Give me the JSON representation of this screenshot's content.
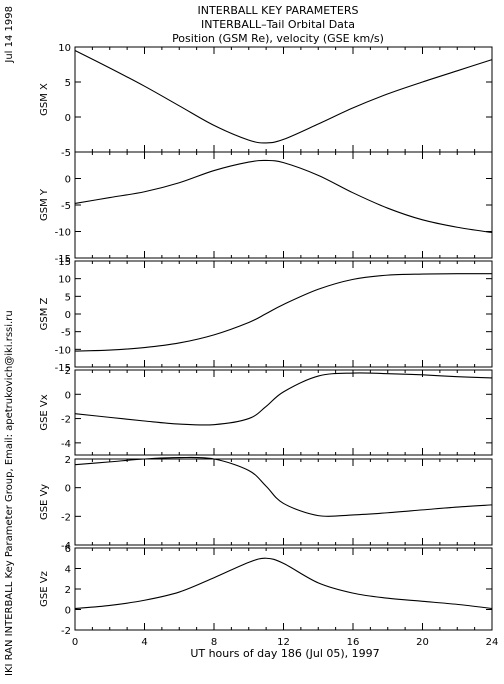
{
  "header": {
    "title_line1": "INTERBALL KEY PARAMETERS",
    "title_line2": "INTERBALL–Tail Orbital Data",
    "title_line3": "Position (GSM Re), velocity (GSE km/s)"
  },
  "side": {
    "date": "Jul 14 1998",
    "credit": "IKI RAN INTERBALL Key Parameter Group, Email: apetrukovich@iki.rssi.ru"
  },
  "chart_data": {
    "type": "line",
    "xlabel": "UT hours of day 186 (Jul 05), 1997",
    "xlim": [
      0,
      24
    ],
    "xticks": [
      0,
      4,
      8,
      12,
      16,
      20,
      24
    ],
    "x": [
      0,
      2,
      4,
      6,
      8,
      10,
      11,
      12,
      14,
      16,
      18,
      20,
      22,
      24
    ],
    "panels": [
      {
        "ylabel": "GSM X",
        "ylim": [
          -5,
          10
        ],
        "yticks": [
          -5,
          0,
          5,
          10
        ],
        "values": [
          9.5,
          7.0,
          4.4,
          1.6,
          -1.2,
          -3.3,
          -3.7,
          -3.2,
          -1.0,
          1.3,
          3.3,
          5.0,
          6.6,
          8.2
        ]
      },
      {
        "ylabel": "GSM Y",
        "ylim": [
          -15,
          5
        ],
        "yticks": [
          -15,
          -10,
          -5,
          0
        ],
        "values": [
          -4.7,
          -3.6,
          -2.5,
          -0.8,
          1.5,
          3.1,
          3.4,
          3.0,
          0.6,
          -2.7,
          -5.6,
          -7.8,
          -9.2,
          -10.2
        ]
      },
      {
        "ylabel": "GSM Z",
        "ylim": [
          -15,
          15
        ],
        "yticks": [
          -15,
          -10,
          -5,
          0,
          5,
          10,
          15
        ],
        "values": [
          -10.5,
          -10.2,
          -9.5,
          -8.2,
          -5.9,
          -2.4,
          0.1,
          2.7,
          7.0,
          9.8,
          11.0,
          11.3,
          11.4,
          11.4
        ]
      },
      {
        "ylabel": "GSE Vx",
        "ylim": [
          -5,
          2
        ],
        "yticks": [
          -4,
          -2,
          0,
          2
        ],
        "values": [
          -1.6,
          -1.9,
          -2.2,
          -2.45,
          -2.5,
          -2.0,
          -1.0,
          0.2,
          1.5,
          1.75,
          1.7,
          1.6,
          1.45,
          1.35
        ]
      },
      {
        "ylabel": "GSE Vy",
        "ylim": [
          -4,
          2
        ],
        "yticks": [
          -4,
          -2,
          0,
          2
        ],
        "values": [
          1.6,
          1.8,
          2.0,
          2.1,
          2.0,
          1.2,
          0.1,
          -1.1,
          -1.95,
          -1.9,
          -1.75,
          -1.55,
          -1.35,
          -1.2
        ]
      },
      {
        "ylabel": "GSE Vz",
        "ylim": [
          -2,
          6
        ],
        "yticks": [
          -2,
          0,
          2,
          4,
          6
        ],
        "values": [
          0.1,
          0.4,
          0.9,
          1.7,
          3.1,
          4.6,
          5.0,
          4.5,
          2.6,
          1.6,
          1.1,
          0.8,
          0.5,
          0.1
        ]
      }
    ]
  }
}
